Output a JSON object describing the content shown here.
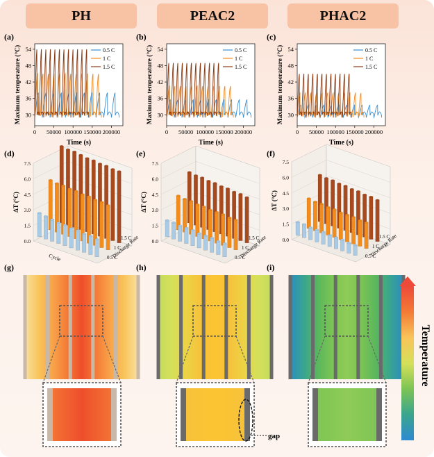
{
  "headers": [
    "PH",
    "PEAC2",
    "PHAC2"
  ],
  "panel_labels": [
    "(a)",
    "(b)",
    "(c)",
    "(d)",
    "(e)",
    "(f)",
    "(g)",
    "(h)",
    "(i)"
  ],
  "colors": {
    "c05": "#3b8fd1",
    "c1": "#f28a1b",
    "c15": "#8a3a12",
    "bar_blue": "#a9cbe6",
    "bar_orange": "#f28c1c",
    "bar_brown": "#a84a1e"
  },
  "chart_data": [
    {
      "type": "line",
      "panel": "(a)",
      "title": "PH",
      "xlabel": "Time (s)",
      "ylabel": "Maximum temperature (°C)",
      "xlim": [
        0,
        230000
      ],
      "ylim": [
        26,
        56
      ],
      "xticks": [
        0,
        50000,
        100000,
        150000,
        200000
      ],
      "yticks": [
        30,
        36,
        42,
        48,
        54
      ],
      "legend": [
        "0.5 C",
        "1 C",
        "1.5 C"
      ],
      "legend_position": "top-right",
      "series": [
        {
          "name": "0.5 C",
          "cycles": 11,
          "period": 20000,
          "min": 29,
          "max": 38
        },
        {
          "name": "1 C",
          "cycles": 12,
          "period": 14500,
          "min": 29,
          "max": 45
        },
        {
          "name": "1.5 C",
          "cycles": 12,
          "period": 11800,
          "min": 29,
          "max": 54
        }
      ]
    },
    {
      "type": "line",
      "panel": "(b)",
      "title": "PEAC2",
      "xlabel": "Time (s)",
      "ylabel": "Maximum temperature (°C)",
      "xlim": [
        0,
        230000
      ],
      "ylim": [
        26,
        56
      ],
      "xticks": [
        0,
        50000,
        100000,
        150000,
        200000
      ],
      "yticks": [
        30,
        36,
        42,
        48,
        54
      ],
      "legend": [
        "0.5 C",
        "1 C",
        "1.5 C"
      ],
      "legend_position": "top-right",
      "series": [
        {
          "name": "0.5 C",
          "cycles": 11,
          "period": 20000,
          "min": 29,
          "max": 35.5
        },
        {
          "name": "1 C",
          "cycles": 12,
          "period": 14500,
          "min": 29,
          "max": 40.5
        },
        {
          "name": "1.5 C",
          "cycles": 12,
          "period": 11800,
          "min": 29,
          "max": 49
        }
      ]
    },
    {
      "type": "line",
      "panel": "(c)",
      "title": "PHAC2",
      "xlabel": "Time (s)",
      "ylabel": "Maximum temperature (°C)",
      "xlim": [
        0,
        230000
      ],
      "ylim": [
        26,
        56
      ],
      "xticks": [
        0,
        50000,
        100000,
        150000,
        200000
      ],
      "yticks": [
        30,
        36,
        42,
        48,
        54
      ],
      "legend": [
        "0.5 C",
        "1 C",
        "1.5 C"
      ],
      "legend_position": "top-right",
      "series": [
        {
          "name": "0.5 C",
          "cycles": 11,
          "period": 20000,
          "min": 29,
          "max": 33.5
        },
        {
          "name": "1 C",
          "cycles": 12,
          "period": 14500,
          "min": 29,
          "max": 38
        },
        {
          "name": "1.5 C",
          "cycles": 12,
          "period": 11800,
          "min": 29,
          "max": 45
        }
      ]
    },
    {
      "type": "bar3d",
      "panel": "(d)",
      "zlabel": "ΔT (°C)",
      "xlabel": "Cycle",
      "ylabel": "Discharge Rate",
      "zticks": [
        "0.0",
        "1.5",
        "3.0",
        "4.5",
        "6.0",
        "7.5"
      ],
      "zlim": [
        0,
        7.5
      ],
      "rates": [
        "0.5 C",
        "1 C",
        "1.5 C"
      ],
      "series": [
        {
          "name": "0.5 C",
          "values": [
            2.3,
            2.2,
            2.1,
            2.0,
            2.0,
            1.9,
            1.9,
            1.8,
            1.8,
            1.7
          ]
        },
        {
          "name": "1 C",
          "values": [
            4.8,
            4.7,
            4.7,
            4.6,
            4.6,
            4.5,
            4.5,
            4.4,
            4.4,
            4.3
          ]
        },
        {
          "name": "1.5 C",
          "values": [
            7.4,
            7.3,
            7.3,
            7.2,
            7.1,
            7.1,
            7.0,
            7.0,
            6.9,
            6.9
          ]
        }
      ]
    },
    {
      "type": "bar3d",
      "panel": "(e)",
      "zlabel": "ΔT (°C)",
      "xlabel": "",
      "ylabel": "Discharge Rate",
      "zticks": [
        "0.0",
        "1.5",
        "3.0",
        "4.5",
        "6.0",
        "7.5"
      ],
      "zlim": [
        0,
        7.5
      ],
      "rates": [
        "0.5 C",
        "1 C",
        "1.5 C"
      ],
      "series": [
        {
          "name": "0.5 C",
          "values": [
            1.6,
            1.6,
            1.5,
            1.5,
            1.5,
            1.4,
            1.4,
            1.4,
            1.3,
            1.3
          ]
        },
        {
          "name": "1 C",
          "values": [
            3.3,
            3.2,
            3.2,
            3.1,
            3.1,
            3.0,
            3.0,
            3.0,
            2.9,
            2.9
          ]
        },
        {
          "name": "1.5 C",
          "values": [
            4.9,
            4.8,
            4.8,
            4.7,
            4.7,
            4.6,
            4.6,
            4.5,
            4.5,
            4.4
          ]
        }
      ]
    },
    {
      "type": "bar3d",
      "panel": "(f)",
      "zlabel": "ΔT (°C)",
      "xlabel": "",
      "ylabel": "Discharge Rate",
      "zticks": [
        "0.0",
        "1.5",
        "3.0",
        "4.5",
        "6.0",
        "7.5"
      ],
      "zlim": [
        0,
        7.5
      ],
      "rates": [
        "0.5 C",
        "1 C",
        "1.5 C"
      ],
      "series": [
        {
          "name": "0.5 C",
          "values": [
            1.3,
            1.3,
            1.2,
            1.2,
            1.2,
            1.1,
            1.1,
            1.1,
            1.0,
            1.0
          ]
        },
        {
          "name": "1 C",
          "values": [
            2.9,
            2.8,
            2.8,
            2.7,
            2.7,
            2.6,
            2.6,
            2.6,
            2.5,
            2.5
          ]
        },
        {
          "name": "1.5 C",
          "values": [
            4.5,
            4.4,
            4.4,
            4.3,
            4.3,
            4.2,
            4.2,
            4.1,
            4.1,
            4.0
          ]
        }
      ]
    }
  ],
  "contours": [
    {
      "panel": "(g)",
      "stops": [
        "#f9e0a0",
        "#f9c45a",
        "#f8a24a",
        "#f47a35",
        "#ee4e2c",
        "#f47a35",
        "#f8a24a",
        "#f9c45a",
        "#f9e0a0"
      ]
    },
    {
      "panel": "(h)",
      "stops": [
        "#c4dc5c",
        "#d6e05a",
        "#ecd244",
        "#f6c23c",
        "#fbc431",
        "#f6c23c",
        "#ecd244",
        "#d6e05a",
        "#c4dc5c"
      ]
    },
    {
      "panel": "(i)",
      "stops": [
        "#2b8ec1",
        "#3aa58d",
        "#5cb85c",
        "#7cc455",
        "#8fcb57",
        "#7cc455",
        "#5cb85c",
        "#3aa58d",
        "#2b8ec1"
      ]
    }
  ],
  "gap_label": "gap",
  "colorbar_label": "Temperature"
}
